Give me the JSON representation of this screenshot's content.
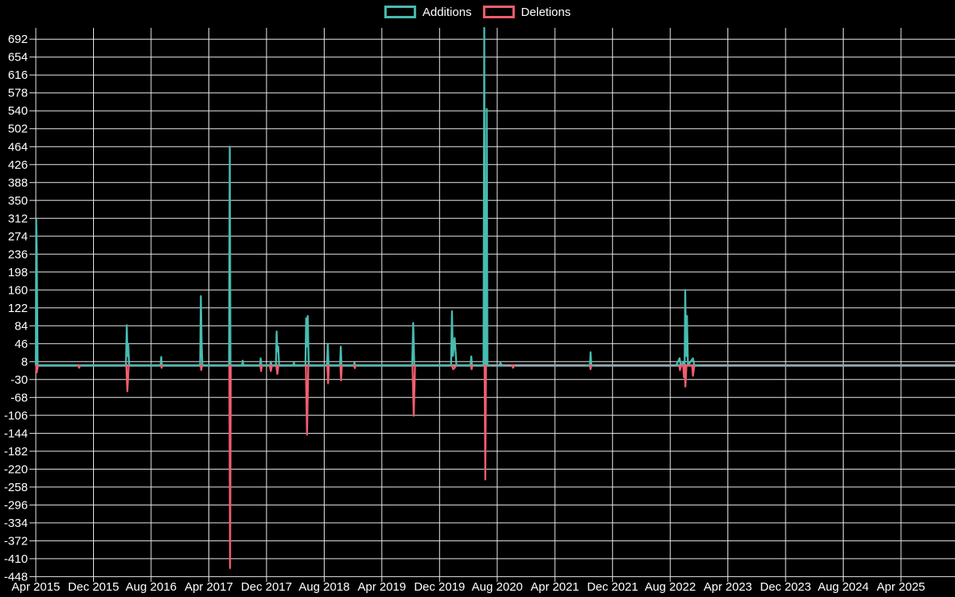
{
  "background": "#000000",
  "legend": {
    "items": [
      {
        "label": "Additions",
        "color": "#48bcb0"
      },
      {
        "label": "Deletions",
        "color": "#f25d6d"
      }
    ]
  },
  "chart_data": {
    "type": "line",
    "title": "",
    "xlabel": "",
    "ylabel": "",
    "x_unit": "months_since_Apr_2015",
    "x_range": [
      0,
      127.5
    ],
    "y_plot_range": [
      -449,
      716
    ],
    "grid": true,
    "legend_position": "top-center",
    "grid_color": "#e8e8e8",
    "zero_line_color": "#94a8b2",
    "text_color": "#ffffff",
    "y_ticks": [
      692,
      654,
      616,
      578,
      540,
      502,
      464,
      426,
      388,
      350,
      312,
      274,
      236,
      198,
      160,
      122,
      84,
      46,
      8,
      -30,
      -68,
      -106,
      -144,
      -182,
      -220,
      -258,
      -296,
      -334,
      -372,
      -410,
      -448
    ],
    "x_ticks": [
      {
        "m": 0,
        "label": "Apr 2015"
      },
      {
        "m": 8,
        "label": "Dec 2015"
      },
      {
        "m": 16,
        "label": "Aug 2016"
      },
      {
        "m": 24,
        "label": "Apr 2017"
      },
      {
        "m": 32,
        "label": "Dec 2017"
      },
      {
        "m": 40,
        "label": "Aug 2018"
      },
      {
        "m": 48,
        "label": "Apr 2019"
      },
      {
        "m": 56,
        "label": "Dec 2019"
      },
      {
        "m": 64,
        "label": "Aug 2020"
      },
      {
        "m": 72,
        "label": "Apr 2021"
      },
      {
        "m": 80,
        "label": "Dec 2021"
      },
      {
        "m": 88,
        "label": "Aug 2022"
      },
      {
        "m": 96,
        "label": "Apr 2023"
      },
      {
        "m": 104,
        "label": "Dec 2023"
      },
      {
        "m": 112,
        "label": "Aug 2024"
      },
      {
        "m": 120,
        "label": "Apr 2025"
      }
    ],
    "series": [
      {
        "name": "Additions",
        "color": "#48bcb0",
        "segments": [
          [
            [
              0,
              0
            ],
            [
              0.05,
              310
            ],
            [
              0.12,
              250
            ],
            [
              0.25,
              0
            ],
            [
              12.5,
              0
            ],
            [
              12.62,
              85
            ],
            [
              12.72,
              20
            ],
            [
              12.82,
              46
            ],
            [
              12.95,
              0
            ],
            [
              17.3,
              0
            ],
            [
              17.4,
              18
            ],
            [
              17.5,
              0
            ],
            [
              22.8,
              0
            ],
            [
              22.9,
              147
            ],
            [
              23.0,
              45
            ],
            [
              23.1,
              0
            ],
            [
              26.8,
              0
            ],
            [
              26.9,
              464
            ],
            [
              27.0,
              0
            ],
            [
              28.6,
              0
            ],
            [
              28.7,
              10
            ],
            [
              28.8,
              0
            ],
            [
              31.1,
              0
            ],
            [
              31.2,
              15
            ],
            [
              31.3,
              0
            ],
            [
              32.5,
              0
            ],
            [
              32.6,
              8
            ],
            [
              32.7,
              0
            ],
            [
              33.3,
              0
            ],
            [
              33.4,
              72
            ],
            [
              33.5,
              30
            ],
            [
              33.62,
              40
            ],
            [
              33.75,
              0
            ],
            [
              35.7,
              0
            ],
            [
              35.8,
              6
            ],
            [
              35.9,
              0
            ],
            [
              37.4,
              0
            ],
            [
              37.5,
              100
            ],
            [
              37.6,
              40
            ],
            [
              37.72,
              105
            ],
            [
              37.85,
              0
            ],
            [
              40.4,
              0
            ],
            [
              40.5,
              46
            ],
            [
              40.6,
              0
            ],
            [
              42.2,
              0
            ],
            [
              42.3,
              40
            ],
            [
              42.4,
              0
            ],
            [
              44.1,
              0
            ],
            [
              44.2,
              6
            ],
            [
              44.3,
              0
            ],
            [
              52.2,
              0
            ],
            [
              52.35,
              90
            ],
            [
              52.5,
              0
            ],
            [
              57.6,
              0
            ],
            [
              57.72,
              115
            ],
            [
              57.85,
              20
            ],
            [
              58.1,
              58
            ],
            [
              58.35,
              0
            ],
            [
              60.3,
              0
            ],
            [
              60.4,
              19
            ],
            [
              60.5,
              0
            ],
            [
              62.1,
              0
            ],
            [
              62.2,
              716
            ],
            [
              62.3,
              0
            ],
            [
              62.45,
              0
            ],
            [
              62.55,
              544
            ],
            [
              62.65,
              0
            ],
            [
              63.0,
              0
            ]
          ],
          [
            [
              64.3,
              0
            ],
            [
              64.45,
              5
            ],
            [
              64.7,
              0
            ]
          ],
          [
            [
              76.3,
              0
            ],
            [
              76.85,
              0
            ],
            [
              76.95,
              28
            ],
            [
              77.05,
              0
            ],
            [
              77.5,
              0
            ]
          ],
          [
            [
              88.8,
              0
            ],
            [
              89.3,
              15
            ],
            [
              89.45,
              0
            ],
            [
              89.9,
              8
            ],
            [
              90.0,
              0
            ],
            [
              90.08,
              160
            ],
            [
              90.2,
              20
            ],
            [
              90.32,
              105
            ],
            [
              90.45,
              0
            ],
            [
              91.15,
              15
            ],
            [
              91.35,
              0
            ],
            [
              92.0,
              0
            ]
          ]
        ]
      },
      {
        "name": "Deletions",
        "color": "#f25d6d",
        "segments": [
          [
            [
              0.05,
              0
            ],
            [
              0.12,
              -15
            ],
            [
              0.3,
              0
            ]
          ],
          [
            [
              5.85,
              0
            ],
            [
              6.0,
              -5
            ],
            [
              6.15,
              0
            ]
          ],
          [
            [
              12.55,
              0
            ],
            [
              12.7,
              -55
            ],
            [
              12.88,
              0
            ]
          ],
          [
            [
              17.35,
              0
            ],
            [
              17.45,
              -5
            ],
            [
              17.55,
              0
            ]
          ],
          [
            [
              22.85,
              0
            ],
            [
              22.95,
              -10
            ],
            [
              23.05,
              0
            ]
          ],
          [
            [
              26.85,
              0
            ],
            [
              26.95,
              -430
            ],
            [
              27.05,
              0
            ]
          ],
          [
            [
              31.15,
              0
            ],
            [
              31.25,
              -12
            ],
            [
              31.35,
              0
            ]
          ],
          [
            [
              32.45,
              0
            ],
            [
              32.6,
              -12
            ],
            [
              32.75,
              0
            ]
          ],
          [
            [
              33.35,
              0
            ],
            [
              33.5,
              -18
            ],
            [
              33.65,
              0
            ]
          ],
          [
            [
              37.45,
              0
            ],
            [
              37.62,
              -147
            ],
            [
              37.8,
              0
            ]
          ],
          [
            [
              40.45,
              0
            ],
            [
              40.55,
              -38
            ],
            [
              40.65,
              0
            ]
          ],
          [
            [
              42.25,
              0
            ],
            [
              42.35,
              -32
            ],
            [
              42.45,
              0
            ]
          ],
          [
            [
              44.15,
              0
            ],
            [
              44.25,
              -6
            ],
            [
              44.35,
              0
            ]
          ],
          [
            [
              52.25,
              0
            ],
            [
              52.42,
              -107
            ],
            [
              52.6,
              0
            ]
          ],
          [
            [
              57.7,
              0
            ],
            [
              57.9,
              -8
            ],
            [
              58.1,
              -5
            ],
            [
              58.3,
              0
            ]
          ],
          [
            [
              60.35,
              0
            ],
            [
              60.45,
              -8
            ],
            [
              60.55,
              0
            ]
          ],
          [
            [
              62.25,
              0
            ],
            [
              62.35,
              -242
            ],
            [
              62.45,
              0
            ]
          ],
          [
            [
              66.05,
              0
            ],
            [
              66.2,
              -5
            ],
            [
              66.35,
              0
            ]
          ],
          [
            [
              76.85,
              0
            ],
            [
              76.95,
              -8
            ],
            [
              77.05,
              0
            ]
          ],
          [
            [
              89.25,
              0
            ],
            [
              89.35,
              -10
            ],
            [
              89.5,
              0
            ],
            [
              89.8,
              0
            ],
            [
              89.9,
              -25
            ],
            [
              90.0,
              0
            ],
            [
              90.1,
              -45
            ],
            [
              90.25,
              0
            ],
            [
              91.05,
              0
            ],
            [
              91.15,
              -22
            ],
            [
              91.35,
              0
            ]
          ]
        ]
      }
    ]
  }
}
